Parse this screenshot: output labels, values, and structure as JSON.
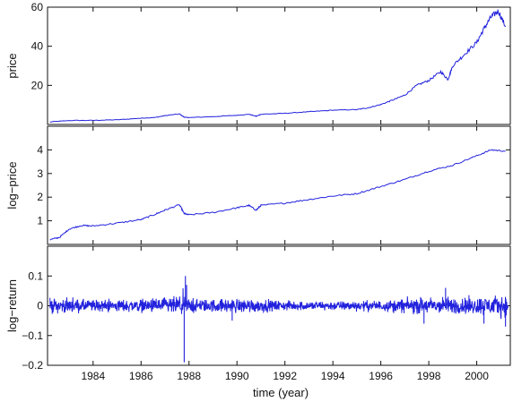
{
  "chart_data": [
    {
      "type": "line",
      "ylabel": "price",
      "xlim": [
        1982.1,
        2001.4
      ],
      "ylim": [
        0,
        60
      ],
      "yticks": [
        20,
        40,
        60
      ],
      "yticklabels": [
        "20",
        "40",
        "60"
      ],
      "show_xticklabels": false,
      "series": [
        {
          "color": "#2222dd",
          "x": [
            1982.2,
            1983,
            1984,
            1985,
            1986,
            1986.6,
            1987,
            1987.6,
            1987.8,
            1988,
            1989,
            1990,
            1990.5,
            1990.8,
            1991,
            1992,
            1993,
            1994,
            1995,
            1995.5,
            1996,
            1996.5,
            1997,
            1997.5,
            1998,
            1998.5,
            1998.8,
            1999,
            1999.5,
            2000,
            2000.3,
            2000.6,
            2000.9,
            2001.2
          ],
          "y": [
            1.3,
            2.0,
            2.1,
            2.4,
            3.2,
            3.6,
            4.5,
            5.4,
            3.7,
            3.5,
            4.0,
            4.7,
            5.2,
            4.2,
            5.2,
            5.7,
            6.5,
            7.3,
            7.6,
            8.6,
            10.2,
            12.5,
            15.0,
            20.0,
            22.5,
            27.0,
            23.0,
            30.0,
            36.0,
            42.0,
            49.0,
            55.0,
            58.0,
            50.0
          ]
        }
      ]
    },
    {
      "type": "line",
      "ylabel": "log−price",
      "xlim": [
        1982.1,
        2001.4
      ],
      "ylim": [
        0,
        5
      ],
      "yticks": [
        1,
        2,
        3,
        4
      ],
      "yticklabels": [
        "1",
        "2",
        "3",
        "4"
      ],
      "show_xticklabels": false,
      "series": [
        {
          "color": "#2222dd",
          "x": [
            1982.2,
            1982.6,
            1983,
            1983.5,
            1984,
            1985,
            1986,
            1986.6,
            1987,
            1987.6,
            1987.8,
            1988,
            1989,
            1990,
            1990.5,
            1990.8,
            1991,
            1992,
            1993,
            1994,
            1995,
            1996,
            1997,
            1998,
            1999,
            2000,
            2000.6,
            2001.2
          ],
          "y": [
            0.2,
            0.3,
            0.65,
            0.8,
            0.78,
            0.9,
            1.05,
            1.28,
            1.45,
            1.68,
            1.3,
            1.25,
            1.35,
            1.55,
            1.65,
            1.45,
            1.65,
            1.75,
            1.9,
            2.05,
            2.15,
            2.45,
            2.75,
            3.1,
            3.35,
            3.75,
            4.0,
            3.95
          ]
        }
      ]
    },
    {
      "type": "line",
      "ylabel": "log−return",
      "xlabel": "time (year)",
      "xlim": [
        1982.1,
        2001.4
      ],
      "ylim": [
        -0.2,
        0.2
      ],
      "yticks": [
        -0.2,
        -0.1,
        0,
        0.1
      ],
      "yticklabels": [
        "−0.2",
        "−0.1",
        "0",
        "0.1"
      ],
      "xticks": [
        1984,
        1986,
        1988,
        1990,
        1992,
        1994,
        1996,
        1998,
        2000
      ],
      "xticklabels": [
        "1984",
        "1986",
        "1988",
        "1990",
        "1992",
        "1994",
        "1996",
        "1998",
        "2000"
      ],
      "show_xticklabels": true,
      "noise": {
        "x_range": [
          1982.2,
          2001.3
        ],
        "spikes": [
          {
            "x": 1987.8,
            "y": -0.19
          },
          {
            "x": 1987.85,
            "y": 0.1
          },
          {
            "x": 1987.9,
            "y": 0.07
          },
          {
            "x": 1989.8,
            "y": -0.05
          },
          {
            "x": 1997.8,
            "y": -0.06
          },
          {
            "x": 1998.7,
            "y": 0.06
          },
          {
            "x": 2000.3,
            "y": -0.06
          },
          {
            "x": 2001.2,
            "y": -0.07
          }
        ]
      },
      "series": [
        {
          "color": "#2222dd",
          "description_level": [
            {
              "x": 1982.2,
              "amp": 0.035
            },
            {
              "x": 1984,
              "amp": 0.028
            },
            {
              "x": 1986,
              "amp": 0.03
            },
            {
              "x": 1987.7,
              "amp": 0.045
            },
            {
              "x": 1988.5,
              "amp": 0.03
            },
            {
              "x": 1990.5,
              "amp": 0.035
            },
            {
              "x": 1992,
              "amp": 0.022
            },
            {
              "x": 1994,
              "amp": 0.022
            },
            {
              "x": 1996,
              "amp": 0.025
            },
            {
              "x": 1997.8,
              "amp": 0.04
            },
            {
              "x": 1999,
              "amp": 0.04
            },
            {
              "x": 2000.5,
              "amp": 0.045
            },
            {
              "x": 2001.3,
              "amp": 0.05
            }
          ]
        }
      ]
    }
  ]
}
